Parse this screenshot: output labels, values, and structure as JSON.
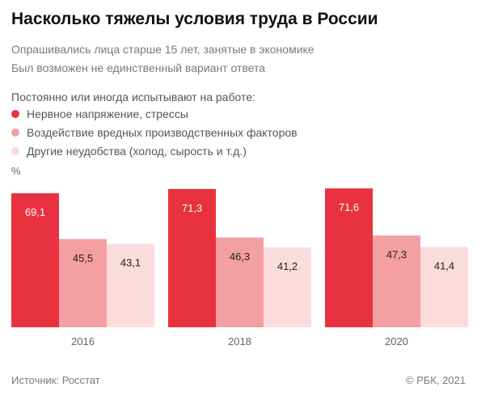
{
  "header": {
    "title": "Насколько тяжелы условия труда в России",
    "subtitle_1": "Опрашивались лица старше 15 лет, занятые в экономике",
    "subtitle_2": "Был возможен не единственный вариант ответа"
  },
  "legend": {
    "title": "Постоянно или иногда испытывают на работе:"
  },
  "unit_label": "%",
  "footer": {
    "source": "Источник: Росстат",
    "copyright": "© РБК, 2021"
  },
  "chart_data": {
    "type": "bar",
    "categories": [
      "2016",
      "2018",
      "2020"
    ],
    "series": [
      {
        "name": "Нервное напряжение, стрессы",
        "values": [
          69.1,
          71.3,
          71.6
        ],
        "labels": [
          "69,1",
          "71,3",
          "71,6"
        ],
        "color": "#e8323f",
        "label_color": "#ffffff"
      },
      {
        "name": "Воздействие вредных производственных факторов",
        "values": [
          45.5,
          46.3,
          47.3
        ],
        "labels": [
          "45,5",
          "46,3",
          "47,3"
        ],
        "color": "#f4a0a3",
        "label_color": "#222222"
      },
      {
        "name": "Другие неудобства (холод, сырость и т.д.)",
        "values": [
          43.1,
          41.2,
          41.4
        ],
        "labels": [
          "43,1",
          "41,2",
          "41,4"
        ],
        "color": "#fbdcdc",
        "label_color": "#222222"
      }
    ],
    "ylabel": "%",
    "ylim": [
      0,
      80
    ],
    "grid": false,
    "legend_position": "top-left",
    "data_labels": true
  }
}
